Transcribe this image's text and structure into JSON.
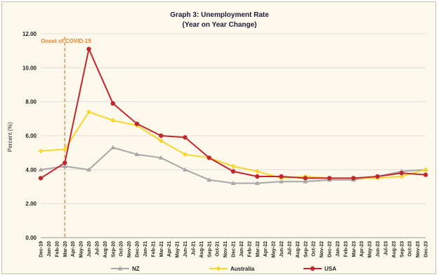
{
  "chart_data": {
    "type": "line",
    "title": "Graph 3: Unemployment Rate",
    "subtitle": "(Year on Year Change)",
    "ylabel": "Percent (%)",
    "xlabel": "",
    "ylim": [
      0,
      12
    ],
    "yticks": [
      "0.00",
      "2.00",
      "4.00",
      "6.00",
      "8.00",
      "10.00",
      "12.00"
    ],
    "grid": true,
    "legend_position": "bottom",
    "categories": [
      "Dec-19",
      "Jan-20",
      "Feb-20",
      "Mar-20",
      "Apr-20",
      "May-20",
      "Jun-20",
      "Jul-20",
      "Aug-20",
      "Sep-20",
      "Oct-20",
      "Nov-20",
      "Dec-20",
      "Jan-21",
      "Feb-21",
      "Mar-21",
      "Apr-21",
      "May-21",
      "Jun-21",
      "Jul-21",
      "Aug-21",
      "Sep-21",
      "Oct-21",
      "Nov-21",
      "Dec-21",
      "Jan-22",
      "Feb-22",
      "Mar-22",
      "Apr-22",
      "May-22",
      "Jun-22",
      "Jul-22",
      "Aug-22",
      "Sep-22",
      "Oct-22",
      "Nov-22",
      "Dec-22",
      "Jan-23",
      "Feb-23",
      "Mar-23",
      "Apr-23",
      "May-23",
      "Jun-23",
      "Jul-23",
      "Aug-23",
      "Sep-23",
      "Oct-23",
      "Nov-23",
      "Dec-23"
    ],
    "annotation": {
      "text": "Onset of COVID-19",
      "x": "Mar-20"
    },
    "series": [
      {
        "name": "NZ",
        "color": "#a8a8a8",
        "marker": "triangle",
        "points": [
          [
            "Dec-19",
            4.0
          ],
          [
            "Mar-20",
            4.2
          ],
          [
            "Jun-20",
            4.0
          ],
          [
            "Sep-20",
            5.3
          ],
          [
            "Dec-20",
            4.9
          ],
          [
            "Mar-21",
            4.7
          ],
          [
            "Jun-21",
            4.0
          ],
          [
            "Sep-21",
            3.4
          ],
          [
            "Dec-21",
            3.2
          ],
          [
            "Mar-22",
            3.2
          ],
          [
            "Jun-22",
            3.3
          ],
          [
            "Sep-22",
            3.3
          ],
          [
            "Dec-22",
            3.4
          ],
          [
            "Mar-23",
            3.4
          ],
          [
            "Jun-23",
            3.6
          ],
          [
            "Sep-23",
            3.9
          ],
          [
            "Dec-23",
            4.0
          ]
        ]
      },
      {
        "name": "Australia",
        "color": "#f7d72e",
        "marker": "diamond",
        "points": [
          [
            "Dec-19",
            5.1
          ],
          [
            "Mar-20",
            5.2
          ],
          [
            "Jun-20",
            7.4
          ],
          [
            "Sep-20",
            6.9
          ],
          [
            "Dec-20",
            6.6
          ],
          [
            "Mar-21",
            5.7
          ],
          [
            "Jun-21",
            4.9
          ],
          [
            "Sep-21",
            4.7
          ],
          [
            "Dec-21",
            4.2
          ],
          [
            "Mar-22",
            3.9
          ],
          [
            "Jun-22",
            3.5
          ],
          [
            "Sep-22",
            3.6
          ],
          [
            "Dec-22",
            3.5
          ],
          [
            "Mar-23",
            3.5
          ],
          [
            "Jun-23",
            3.5
          ],
          [
            "Sep-23",
            3.6
          ],
          [
            "Dec-23",
            4.0
          ]
        ]
      },
      {
        "name": "USA",
        "color": "#c0282e",
        "marker": "circle",
        "points": [
          [
            "Dec-19",
            3.5
          ],
          [
            "Mar-20",
            4.4
          ],
          [
            "Jun-20",
            11.1
          ],
          [
            "Sep-20",
            7.9
          ],
          [
            "Dec-20",
            6.7
          ],
          [
            "Mar-21",
            6.0
          ],
          [
            "Jun-21",
            5.9
          ],
          [
            "Sep-21",
            4.7
          ],
          [
            "Dec-21",
            3.9
          ],
          [
            "Mar-22",
            3.6
          ],
          [
            "Jun-22",
            3.6
          ],
          [
            "Sep-22",
            3.5
          ],
          [
            "Dec-22",
            3.5
          ],
          [
            "Mar-23",
            3.5
          ],
          [
            "Jun-23",
            3.6
          ],
          [
            "Sep-23",
            3.8
          ],
          [
            "Dec-23",
            3.7
          ]
        ]
      }
    ]
  }
}
